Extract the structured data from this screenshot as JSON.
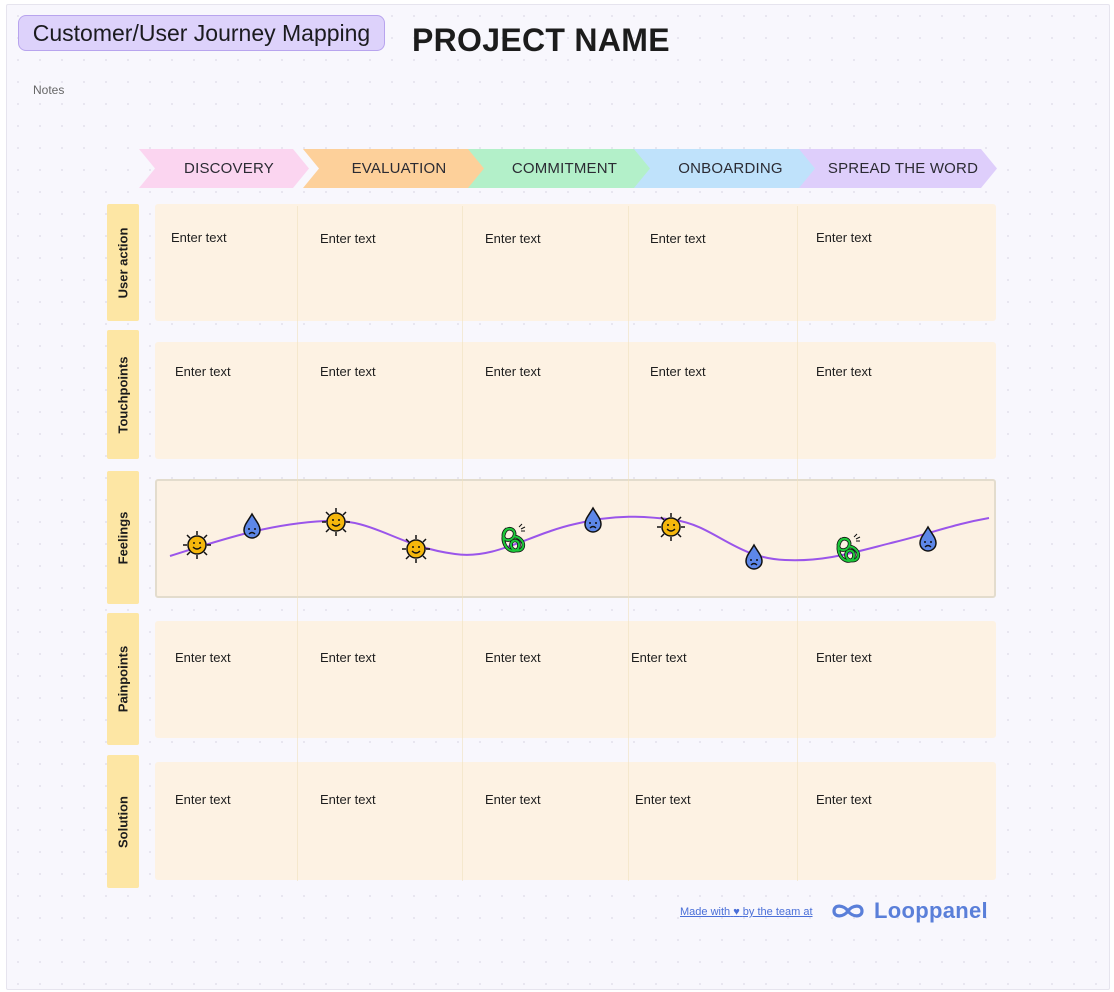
{
  "title": "Customer/User Journey Mapping",
  "project_name": "PROJECT NAME",
  "notes_label": "Notes",
  "stages": [
    {
      "label": "DISCOVERY",
      "color": "#fbd5f0"
    },
    {
      "label": "EVALUATION",
      "color": "#fdd09a"
    },
    {
      "label": "COMMITMENT",
      "color": "#b3f0c9"
    },
    {
      "label": "ONBOARDING",
      "color": "#bfe2fb"
    },
    {
      "label": "SPREAD THE WORD",
      "color": "#decefb"
    }
  ],
  "rows": [
    {
      "label": "User action",
      "cells": [
        "Enter text",
        "Enter text",
        "Enter text",
        "Enter text",
        "Enter text"
      ]
    },
    {
      "label": "Touchpoints",
      "cells": [
        "Enter text",
        "Enter text",
        "Enter text",
        "Enter text",
        "Enter text"
      ]
    },
    {
      "label": "Feelings"
    },
    {
      "label": "Painpoints",
      "cells": [
        "Enter text",
        "Enter text",
        "Enter text",
        "Enter text",
        "Enter text"
      ]
    },
    {
      "label": "Solution",
      "cells": [
        "Enter text",
        "Enter text",
        "Enter text",
        "Enter text",
        "Enter text"
      ]
    }
  ],
  "feelings": [
    "happy-sun",
    "sad-drop",
    "happy-sun",
    "happy-sun",
    "tangled-anxious",
    "sad-drop",
    "happy-sun",
    "sad-drop",
    "tangled-anxious",
    "sad-drop"
  ],
  "colors": {
    "curve": "#9a55ea",
    "sun": "#f5b70c",
    "drop": "#5d87e8",
    "tangle": "#1cc83a"
  },
  "footer": {
    "made_with": "Made with",
    "by_team": "by the team at",
    "brand": "Looppanel"
  }
}
